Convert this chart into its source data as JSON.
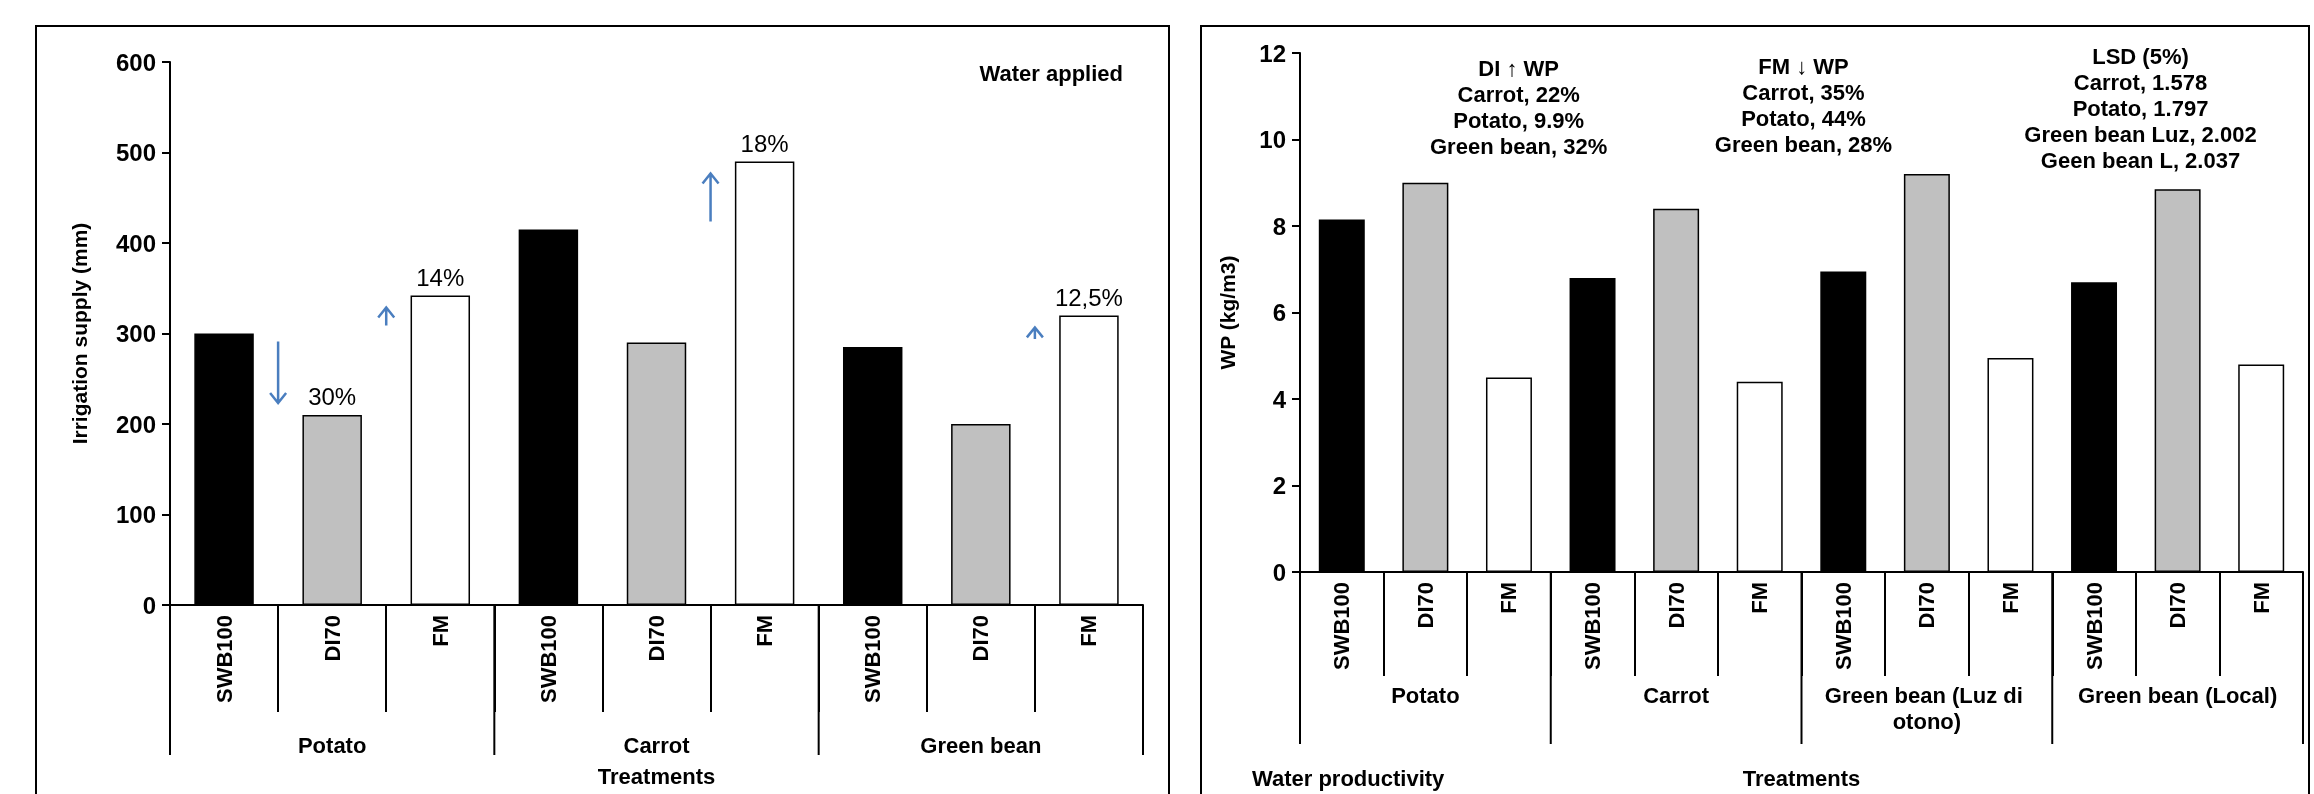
{
  "chart_data": [
    {
      "type": "bar",
      "title": "Water applied",
      "categories": [
        "SWB100",
        "DI70",
        "FM",
        "SWB100",
        "DI70",
        "FM",
        "SWB100",
        "DI70",
        "FM"
      ],
      "values": [
        300,
        210,
        342,
        415,
        290,
        490,
        285,
        200,
        320
      ],
      "colors": [
        "#000000",
        "#c0c0c0",
        "#ffffff",
        "#000000",
        "#c0c0c0",
        "#ffffff",
        "#000000",
        "#c0c0c0",
        "#ffffff"
      ],
      "xlabel": "Treatments",
      "ylabel": "Irrigation supply (mm)",
      "ylim": [
        0,
        600
      ],
      "yticks": [
        0,
        100,
        200,
        300,
        400,
        500,
        600
      ],
      "annotations": [
        "Potato",
        "Carrot",
        "Green bean",
        "30%",
        "14%",
        "18%",
        "12,5%"
      ],
      "grid": false
    },
    {
      "type": "bar",
      "title": "Water productivity",
      "categories": [
        "SWB100",
        "DI70",
        "FM",
        "SWB100",
        "DI70",
        "FM",
        "SWB100",
        "DI70",
        "FM",
        "SWB100",
        "DI70",
        "FM"
      ],
      "values": [
        8.15,
        9.0,
        4.5,
        6.8,
        8.4,
        4.4,
        6.95,
        9.2,
        4.95,
        6.7,
        8.85,
        4.8
      ],
      "colors": [
        "#000000",
        "#c0c0c0",
        "#ffffff",
        "#000000",
        "#c0c0c0",
        "#ffffff",
        "#000000",
        "#c0c0c0",
        "#ffffff",
        "#000000",
        "#c0c0c0",
        "#ffffff"
      ],
      "xlabel": "Treatments",
      "ylabel": "WP (kg/m3)",
      "ylim": [
        0,
        12
      ],
      "yticks": [
        0,
        2,
        4,
        6,
        8,
        10,
        12
      ],
      "annotations": [
        "Potato",
        "Carrot",
        "Green bean (Luz di otono)",
        "Green bean (Local)",
        "DI ↑ WP\nCarrot, 22%\nPotato, 9.9%\nGreen bean, 32%",
        "FM ↓ WP\nCarrot, 35%\nPotato, 44%\nGreen bean, 28%",
        "LSD (5%)\nCarrot, 1.578\nPotato, 1.797\nGreen bean Luz, 2.002\nGeen bean L, 2.037"
      ],
      "grid": false
    }
  ]
}
